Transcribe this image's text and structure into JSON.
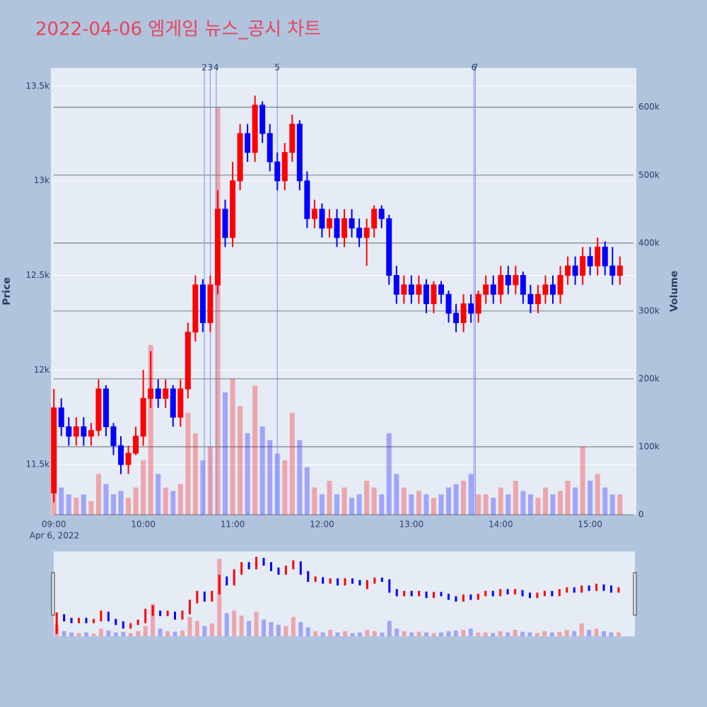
{
  "chart_data": {
    "type": "candlestick",
    "title": "2022-04-06 엠게임 뉴스_공시 차트",
    "y_label": "Price",
    "y2_label": "Volume",
    "date_label": "Apr 6, 2022",
    "increasing_color": "#ff0000",
    "decreasing_color": "#0000ff",
    "news_color": "#7a8ef0",
    "grid": true,
    "rangeslider": true,
    "xlim": [
      "08:58",
      "15:31"
    ],
    "xticks": [
      "09:00",
      "10:00",
      "11:00",
      "12:00",
      "13:00",
      "14:00",
      "15:00"
    ],
    "ylim": [
      11235,
      13597
    ],
    "yticks": [
      {
        "value": 11500,
        "label": "11.5k"
      },
      {
        "value": 12000,
        "label": "12k"
      },
      {
        "value": 12500,
        "label": "12.5k"
      },
      {
        "value": 13000,
        "label": "13k"
      },
      {
        "value": 13500,
        "label": "13.5k"
      }
    ],
    "y2lim": [
      0,
      658000
    ],
    "y2ticks": [
      0,
      {
        "value": 100000,
        "label": "100k"
      },
      {
        "value": 200000,
        "label": "200k"
      },
      {
        "value": 300000,
        "label": "300k"
      },
      {
        "value": 400000,
        "label": "400k"
      },
      {
        "value": 500000,
        "label": "500k"
      },
      {
        "value": 600000,
        "label": "600k"
      }
    ],
    "news": [
      {
        "x": "10:41",
        "label": "2"
      },
      {
        "x": "10:45",
        "label": "3"
      },
      {
        "x": "10:49",
        "label": "4"
      },
      {
        "x": "11:30",
        "label": "5"
      },
      {
        "x": "13:42",
        "label": "6"
      },
      {
        "x": "13:43",
        "label": "7"
      }
    ],
    "x": [
      "09:00",
      "09:05",
      "09:10",
      "09:15",
      "09:20",
      "09:25",
      "09:30",
      "09:35",
      "09:40",
      "09:45",
      "09:50",
      "09:55",
      "10:00",
      "10:05",
      "10:10",
      "10:15",
      "10:20",
      "10:25",
      "10:30",
      "10:35",
      "10:40",
      "10:45",
      "10:50",
      "10:55",
      "11:00",
      "11:05",
      "11:10",
      "11:15",
      "11:20",
      "11:25",
      "11:30",
      "11:35",
      "11:40",
      "11:45",
      "11:50",
      "11:55",
      "12:00",
      "12:05",
      "12:10",
      "12:15",
      "12:20",
      "12:25",
      "12:30",
      "12:35",
      "12:40",
      "12:45",
      "12:50",
      "12:55",
      "13:00",
      "13:05",
      "13:10",
      "13:15",
      "13:20",
      "13:25",
      "13:30",
      "13:35",
      "13:40",
      "13:45",
      "13:50",
      "13:55",
      "14:00",
      "14:05",
      "14:10",
      "14:15",
      "14:20",
      "14:25",
      "14:30",
      "14:35",
      "14:40",
      "14:45",
      "14:50",
      "14:55",
      "15:00",
      "15:05",
      "15:10",
      "15:15",
      "15:20"
    ],
    "open": [
      11350,
      11800,
      11700,
      11650,
      11700,
      11650,
      11680,
      11900,
      11700,
      11600,
      11500,
      11560,
      11650,
      11850,
      11900,
      11850,
      11900,
      11750,
      11900,
      12200,
      12450,
      12250,
      12450,
      12850,
      12700,
      13000,
      13250,
      13150,
      13400,
      13250,
      13100,
      13000,
      13150,
      13300,
      13000,
      12800,
      12850,
      12750,
      12800,
      12700,
      12800,
      12750,
      12700,
      12750,
      12850,
      12800,
      12500,
      12400,
      12450,
      12400,
      12450,
      12350,
      12450,
      12400,
      12300,
      12250,
      12350,
      12300,
      12400,
      12450,
      12400,
      12500,
      12450,
      12500,
      12400,
      12350,
      12400,
      12450,
      12400,
      12500,
      12550,
      12500,
      12600,
      12550,
      12650,
      12550,
      12500
    ],
    "high": [
      11900,
      11850,
      11750,
      11750,
      11750,
      11720,
      11950,
      11920,
      11720,
      11650,
      11600,
      11700,
      12000,
      12100,
      11950,
      11950,
      11920,
      11950,
      12250,
      12500,
      12480,
      12500,
      12950,
      12900,
      13100,
      13300,
      13300,
      13450,
      13420,
      13300,
      13150,
      13200,
      13350,
      13320,
      13050,
      12900,
      12880,
      12850,
      12850,
      12850,
      12850,
      12800,
      12800,
      12870,
      12870,
      12820,
      12550,
      12500,
      12500,
      12500,
      12480,
      12470,
      12470,
      12420,
      12350,
      12400,
      12400,
      12420,
      12500,
      12500,
      12550,
      12550,
      12550,
      12520,
      12450,
      12450,
      12500,
      12500,
      12550,
      12600,
      12600,
      12650,
      12650,
      12700,
      12680,
      12650,
      12600
    ],
    "low": [
      11300,
      11650,
      11600,
      11600,
      11600,
      11600,
      11650,
      11650,
      11550,
      11450,
      11450,
      11550,
      11600,
      11800,
      11800,
      11800,
      11700,
      11700,
      11850,
      12150,
      12200,
      12200,
      12400,
      12650,
      12650,
      12950,
      13100,
      13100,
      13200,
      13050,
      12950,
      12950,
      13100,
      12950,
      12750,
      12750,
      12700,
      12700,
      12650,
      12650,
      12700,
      12650,
      12550,
      12700,
      12750,
      12450,
      12350,
      12350,
      12350,
      12350,
      12300,
      12300,
      12350,
      12250,
      12200,
      12200,
      12250,
      12250,
      12350,
      12350,
      12350,
      12400,
      12400,
      12350,
      12300,
      12300,
      12350,
      12350,
      12350,
      12450,
      12450,
      12450,
      12500,
      12500,
      12500,
      12450,
      12450
    ],
    "close": [
      11800,
      11700,
      11650,
      11700,
      11650,
      11680,
      11900,
      11700,
      11600,
      11500,
      11560,
      11650,
      11850,
      11900,
      11850,
      11900,
      11750,
      11900,
      12200,
      12450,
      12250,
      12450,
      12850,
      12700,
      13000,
      13250,
      13150,
      13400,
      13250,
      13100,
      13000,
      13150,
      13300,
      13000,
      12800,
      12850,
      12750,
      12800,
      12700,
      12800,
      12750,
      12700,
      12750,
      12850,
      12800,
      12500,
      12400,
      12450,
      12400,
      12450,
      12350,
      12450,
      12400,
      12300,
      12250,
      12350,
      12300,
      12400,
      12450,
      12400,
      12500,
      12450,
      12500,
      12400,
      12350,
      12400,
      12450,
      12400,
      12500,
      12550,
      12500,
      12600,
      12550,
      12650,
      12550,
      12500,
      12550
    ],
    "volume": [
      90000,
      40000,
      30000,
      25000,
      30000,
      20000,
      60000,
      45000,
      30000,
      35000,
      25000,
      40000,
      80000,
      250000,
      60000,
      40000,
      35000,
      45000,
      150000,
      120000,
      80000,
      100000,
      600000,
      180000,
      200000,
      160000,
      120000,
      190000,
      130000,
      110000,
      90000,
      80000,
      150000,
      110000,
      70000,
      40000,
      30000,
      50000,
      30000,
      40000,
      25000,
      30000,
      50000,
      40000,
      30000,
      120000,
      60000,
      40000,
      30000,
      35000,
      30000,
      25000,
      30000,
      40000,
      45000,
      50000,
      60000,
      30000,
      30000,
      25000,
      40000,
      30000,
      50000,
      35000,
      30000,
      25000,
      40000,
      30000,
      35000,
      50000,
      40000,
      100000,
      50000,
      60000,
      40000,
      30000,
      30000
    ]
  }
}
